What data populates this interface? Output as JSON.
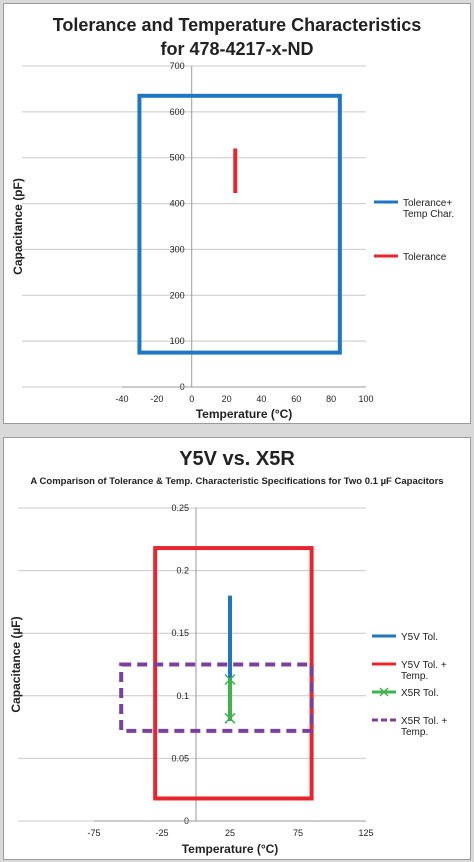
{
  "chart_data": [
    {
      "type": "line",
      "title_lines": [
        "Tolerance and Temperature Characteristics",
        "for 478-4217-x-ND"
      ],
      "xlabel": "Temperature (°C)",
      "ylabel": "Capacitance (pF)",
      "xlim": [
        -40,
        100
      ],
      "ylim": [
        0,
        700
      ],
      "x_ticks": [
        -40,
        -20,
        0,
        20,
        40,
        60,
        80,
        100
      ],
      "y_ticks": [
        0,
        100,
        200,
        300,
        400,
        500,
        600,
        700
      ],
      "grid": "horizontal",
      "legend_position": "right",
      "series": [
        {
          "name": "Tolerance+\nTemp Char.",
          "kind": "rect",
          "color": "#1f77c4",
          "dash": false,
          "x": [
            -30,
            85
          ],
          "y": [
            75,
            635
          ]
        },
        {
          "name": "Tolerance",
          "kind": "vline",
          "color": "#e8252e",
          "dash": false,
          "x": 25,
          "y": [
            423,
            520
          ]
        }
      ]
    },
    {
      "type": "line",
      "title_lines": [
        "Y5V vs. X5R"
      ],
      "subtitle": "A Comparison of Tolerance & Temp. Characteristic Specifications for Two 0.1 µF Capacitors",
      "xlabel": "Temperature (°C)",
      "ylabel": "Capacitance (µF)",
      "xlim": [
        -75,
        125
      ],
      "ylim": [
        0,
        0.25
      ],
      "x_ticks": [
        -75,
        -25,
        25,
        75,
        125
      ],
      "y_ticks": [
        0,
        0.05,
        0.1,
        0.15,
        0.2,
        0.25
      ],
      "y_tick_labels": [
        "0",
        "0.05",
        "0.1",
        "0.15",
        "0.2",
        "0.25"
      ],
      "grid": "horizontal",
      "legend_position": "right",
      "series": [
        {
          "name": "Y5V Tol.",
          "kind": "vline",
          "color": "#1f77c4",
          "dash": false,
          "x": 25,
          "y": [
            0.08,
            0.18
          ]
        },
        {
          "name": "Y5V Tol. +\nTemp.",
          "kind": "rect",
          "color": "#e8252e",
          "dash": false,
          "x": [
            -30,
            85
          ],
          "y": [
            0.018,
            0.218
          ]
        },
        {
          "name": "X5R Tol.",
          "kind": "vline_markers",
          "color": "#3cb44b",
          "dash": false,
          "x": 25,
          "y": [
            0.082,
            0.113
          ]
        },
        {
          "name": "X5R Tol. +\nTemp.",
          "kind": "rect",
          "color": "#7b3fa0",
          "dash": true,
          "x": [
            -55,
            85
          ],
          "y": [
            0.072,
            0.125
          ]
        }
      ]
    }
  ]
}
